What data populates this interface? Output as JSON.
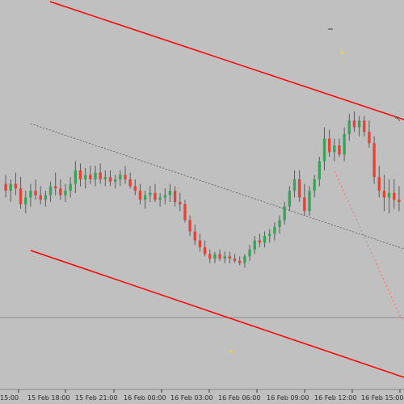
{
  "chart_data": {
    "type": "candlestick",
    "x_labels": [
      "15:00",
      "15 Feb 18:00",
      "15 Feb 21:00",
      "16 Feb 00:00",
      "16 Feb 03:00",
      "16 Feb 06:00",
      "16 Feb 09:00",
      "16 Feb 12:00",
      "16 Feb 15:00"
    ],
    "y_range": [
      0,
      100
    ],
    "candles": [
      {
        "o": 58,
        "h": 62,
        "l": 52,
        "c": 55
      },
      {
        "o": 55,
        "h": 60,
        "l": 50,
        "c": 58
      },
      {
        "o": 58,
        "h": 63,
        "l": 53,
        "c": 56
      },
      {
        "o": 56,
        "h": 61,
        "l": 47,
        "c": 49
      },
      {
        "o": 49,
        "h": 55,
        "l": 45,
        "c": 52
      },
      {
        "o": 52,
        "h": 58,
        "l": 48,
        "c": 55
      },
      {
        "o": 55,
        "h": 60,
        "l": 51,
        "c": 53
      },
      {
        "o": 53,
        "h": 57,
        "l": 49,
        "c": 51
      },
      {
        "o": 51,
        "h": 55,
        "l": 48,
        "c": 53
      },
      {
        "o": 53,
        "h": 59,
        "l": 50,
        "c": 57
      },
      {
        "o": 57,
        "h": 63,
        "l": 53,
        "c": 56
      },
      {
        "o": 56,
        "h": 60,
        "l": 51,
        "c": 53
      },
      {
        "o": 53,
        "h": 58,
        "l": 50,
        "c": 55
      },
      {
        "o": 55,
        "h": 61,
        "l": 52,
        "c": 58
      },
      {
        "o": 58,
        "h": 68,
        "l": 54,
        "c": 64
      },
      {
        "o": 64,
        "h": 67,
        "l": 57,
        "c": 60
      },
      {
        "o": 60,
        "h": 65,
        "l": 56,
        "c": 62
      },
      {
        "o": 62,
        "h": 66,
        "l": 58,
        "c": 60
      },
      {
        "o": 60,
        "h": 66,
        "l": 57,
        "c": 63
      },
      {
        "o": 63,
        "h": 67,
        "l": 58,
        "c": 60
      },
      {
        "o": 60,
        "h": 64,
        "l": 57,
        "c": 61
      },
      {
        "o": 61,
        "h": 64,
        "l": 57,
        "c": 59
      },
      {
        "o": 59,
        "h": 62,
        "l": 56,
        "c": 60
      },
      {
        "o": 60,
        "h": 64,
        "l": 57,
        "c": 62
      },
      {
        "o": 62,
        "h": 66,
        "l": 58,
        "c": 60
      },
      {
        "o": 60,
        "h": 63,
        "l": 56,
        "c": 57
      },
      {
        "o": 57,
        "h": 60,
        "l": 53,
        "c": 55
      },
      {
        "o": 55,
        "h": 58,
        "l": 49,
        "c": 51
      },
      {
        "o": 51,
        "h": 55,
        "l": 47,
        "c": 53
      },
      {
        "o": 53,
        "h": 57,
        "l": 50,
        "c": 54
      },
      {
        "o": 54,
        "h": 58,
        "l": 50,
        "c": 51
      },
      {
        "o": 51,
        "h": 54,
        "l": 48,
        "c": 52
      },
      {
        "o": 52,
        "h": 56,
        "l": 49,
        "c": 53
      },
      {
        "o": 53,
        "h": 58,
        "l": 50,
        "c": 55
      },
      {
        "o": 55,
        "h": 57,
        "l": 48,
        "c": 50
      },
      {
        "o": 50,
        "h": 54,
        "l": 46,
        "c": 49
      },
      {
        "o": 49,
        "h": 51,
        "l": 41,
        "c": 42
      },
      {
        "o": 42,
        "h": 44,
        "l": 35,
        "c": 37
      },
      {
        "o": 37,
        "h": 40,
        "l": 31,
        "c": 33
      },
      {
        "o": 33,
        "h": 36,
        "l": 28,
        "c": 30
      },
      {
        "o": 30,
        "h": 33,
        "l": 26,
        "c": 27
      },
      {
        "o": 27,
        "h": 29,
        "l": 23,
        "c": 25
      },
      {
        "o": 25,
        "h": 28,
        "l": 23,
        "c": 27
      },
      {
        "o": 27,
        "h": 29,
        "l": 24,
        "c": 25
      },
      {
        "o": 25,
        "h": 28,
        "l": 23,
        "c": 26
      },
      {
        "o": 26,
        "h": 28,
        "l": 23,
        "c": 25
      },
      {
        "o": 25,
        "h": 27,
        "l": 23,
        "c": 24
      },
      {
        "o": 24,
        "h": 26,
        "l": 22,
        "c": 23
      },
      {
        "o": 23,
        "h": 27,
        "l": 21,
        "c": 26
      },
      {
        "o": 26,
        "h": 31,
        "l": 24,
        "c": 29
      },
      {
        "o": 29,
        "h": 35,
        "l": 27,
        "c": 33
      },
      {
        "o": 33,
        "h": 36,
        "l": 30,
        "c": 32
      },
      {
        "o": 32,
        "h": 37,
        "l": 30,
        "c": 35
      },
      {
        "o": 35,
        "h": 38,
        "l": 32,
        "c": 36
      },
      {
        "o": 36,
        "h": 41,
        "l": 33,
        "c": 39
      },
      {
        "o": 39,
        "h": 44,
        "l": 36,
        "c": 42
      },
      {
        "o": 42,
        "h": 50,
        "l": 40,
        "c": 48
      },
      {
        "o": 48,
        "h": 57,
        "l": 46,
        "c": 55
      },
      {
        "o": 55,
        "h": 64,
        "l": 52,
        "c": 60
      },
      {
        "o": 60,
        "h": 64,
        "l": 50,
        "c": 52
      },
      {
        "o": 52,
        "h": 58,
        "l": 44,
        "c": 46
      },
      {
        "o": 46,
        "h": 57,
        "l": 44,
        "c": 55
      },
      {
        "o": 55,
        "h": 62,
        "l": 52,
        "c": 60
      },
      {
        "o": 60,
        "h": 70,
        "l": 57,
        "c": 68
      },
      {
        "o": 68,
        "h": 83,
        "l": 64,
        "c": 78
      },
      {
        "o": 78,
        "h": 82,
        "l": 70,
        "c": 72
      },
      {
        "o": 72,
        "h": 78,
        "l": 68,
        "c": 75
      },
      {
        "o": 75,
        "h": 78,
        "l": 70,
        "c": 71
      },
      {
        "o": 71,
        "h": 83,
        "l": 68,
        "c": 80
      },
      {
        "o": 80,
        "h": 89,
        "l": 77,
        "c": 86
      },
      {
        "o": 86,
        "h": 90,
        "l": 81,
        "c": 83
      },
      {
        "o": 83,
        "h": 88,
        "l": 79,
        "c": 86
      },
      {
        "o": 86,
        "h": 88,
        "l": 79,
        "c": 81
      },
      {
        "o": 81,
        "h": 86,
        "l": 74,
        "c": 76
      },
      {
        "o": 76,
        "h": 79,
        "l": 58,
        "c": 61
      },
      {
        "o": 61,
        "h": 66,
        "l": 52,
        "c": 55
      },
      {
        "o": 55,
        "h": 62,
        "l": 46,
        "c": 52
      },
      {
        "o": 52,
        "h": 60,
        "l": 45,
        "c": 54
      },
      {
        "o": 54,
        "h": 60,
        "l": 47,
        "c": 51
      },
      {
        "o": 51,
        "h": 57,
        "l": 46,
        "c": 50
      }
    ]
  },
  "drawings": {
    "upper_line_color": "#ff0000",
    "lower_line_color": "#ff0000",
    "mid_line_color": "#555555"
  }
}
